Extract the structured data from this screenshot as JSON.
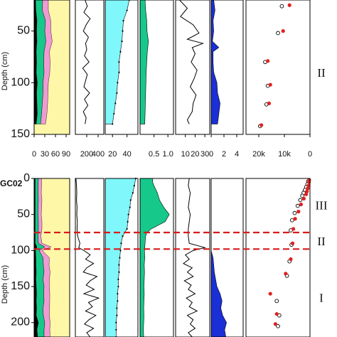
{
  "figure": {
    "core_label": "GC02",
    "depth_label": "Depth (cm)",
    "colors": {
      "yellow": "#fff7a8",
      "pink": "#ef9bd3",
      "green": "#16c98a",
      "black": "#000000",
      "cyan": "#7ff7fb",
      "blue": "#1b2fd6",
      "red": "#e0201f",
      "zone_line": "#d81b1b"
    }
  },
  "chart_data": [
    {
      "type": "area",
      "panel": "upper",
      "depth_axis": {
        "label": "Depth (cm)",
        "ticks": [
          50,
          100,
          150
        ],
        "range": [
          20,
          150
        ],
        "reversed": true
      },
      "zones": [
        {
          "label": "II",
          "depth": 90
        }
      ],
      "tracks": [
        {
          "name": "composition",
          "type": "stacked-area",
          "ticks": [
            "0",
            "30",
            "60",
            "90"
          ],
          "range": [
            0,
            100
          ],
          "depth": [
            20,
            30,
            40,
            50,
            60,
            70,
            80,
            90,
            100,
            110,
            120,
            130,
            140
          ],
          "series": [
            {
              "key": "black",
              "values": [
                4,
                5,
                8,
                7,
                8,
                6,
                7,
                6,
                9,
                7,
                8,
                9,
                6
              ]
            },
            {
              "key": "green",
              "values": [
                20,
                18,
                24,
                23,
                25,
                22,
                20,
                22,
                16,
                18,
                15,
                12,
                12
              ]
            },
            {
              "key": "pink",
              "values": [
                16,
                17,
                15,
                17,
                18,
                15,
                18,
                16,
                15,
                14,
                15,
                15,
                14
              ]
            }
          ]
        },
        {
          "name": "line-1",
          "type": "line",
          "ticks": [
            "200",
            "400"
          ],
          "range": [
            0,
            500
          ],
          "depth": [
            20,
            26,
            32,
            38,
            44,
            50,
            56,
            62,
            68,
            74,
            80,
            86,
            92,
            98,
            104,
            110,
            116,
            122,
            128,
            134,
            140
          ],
          "values": [
            170,
            210,
            150,
            260,
            190,
            140,
            230,
            180,
            200,
            160,
            240,
            130,
            210,
            180,
            150,
            250,
            160,
            220,
            140,
            190,
            170
          ]
        },
        {
          "name": "cyan-profile",
          "type": "area-dotted",
          "ticks": [
            "20",
            "40"
          ],
          "range": [
            10,
            55
          ],
          "depth": [
            20,
            30,
            40,
            50,
            60,
            70,
            80,
            90,
            100,
            110,
            120,
            130,
            140
          ],
          "values": [
            43,
            40,
            35,
            34,
            33,
            31,
            29,
            29,
            27,
            26,
            24,
            22,
            20
          ]
        },
        {
          "name": "green-profile",
          "type": "area",
          "ticks": [
            "0.5",
            "1.0"
          ],
          "range": [
            0,
            1.2
          ],
          "depth": [
            20,
            30,
            40,
            50,
            60,
            70,
            80,
            90,
            100,
            110,
            120,
            130,
            140
          ],
          "values": [
            0.18,
            0.2,
            0.24,
            0.25,
            0.3,
            0.26,
            0.24,
            0.22,
            0.21,
            0.2,
            0.19,
            0.18,
            0.17
          ]
        },
        {
          "name": "line-2",
          "type": "line",
          "ticks": [
            "10",
            "20",
            "30"
          ],
          "range": [
            0,
            35
          ],
          "depth": [
            20,
            28,
            36,
            44,
            52,
            58,
            62,
            66,
            72,
            80,
            88,
            96,
            104,
            112,
            120,
            128,
            136,
            140
          ],
          "values": [
            4,
            12,
            5,
            18,
            24,
            12,
            28,
            17,
            20,
            16,
            22,
            19,
            15,
            21,
            18,
            17,
            12,
            14
          ]
        },
        {
          "name": "blue-profile",
          "type": "area",
          "ticks": [
            "0",
            "2",
            "4"
          ],
          "range": [
            0,
            5
          ],
          "depth": [
            20,
            30,
            40,
            50,
            60,
            66,
            70,
            80,
            90,
            100,
            110,
            120,
            130,
            140
          ],
          "values": [
            0.4,
            0.6,
            0.3,
            0.4,
            0.2,
            1.2,
            0.3,
            0.3,
            0.4,
            0.9,
            1.0,
            1.4,
            1.2,
            1.0
          ]
        },
        {
          "name": "ages",
          "type": "scatter",
          "ticks": [
            "20k",
            "10k",
            "0"
          ],
          "range": [
            25000,
            0
          ],
          "series": [
            {
              "key": "open",
              "depth": [
                26,
                52,
                80,
                103,
                121,
                142
              ],
              "values": [
                11000,
                12500,
                17500,
                16500,
                17000,
                19500
              ]
            },
            {
              "key": "red",
              "depth": [
                25,
                50,
                79,
                102,
                120,
                141
              ],
              "values": [
                8000,
                10500,
                16500,
                15500,
                16000,
                19000
              ]
            }
          ]
        }
      ]
    },
    {
      "type": "area",
      "panel": "lower",
      "depth_axis": {
        "label": "Depth (cm)",
        "ticks": [
          0,
          50,
          100,
          150,
          200
        ],
        "range": [
          0,
          220
        ],
        "reversed": true
      },
      "zone_boundaries": [
        75,
        98
      ],
      "zones": [
        {
          "label": "III",
          "depth": 37
        },
        {
          "label": "II",
          "depth": 87
        },
        {
          "label": "I",
          "depth": 165
        }
      ],
      "tracks": [
        {
          "name": "composition",
          "type": "stacked-area",
          "range": [
            0,
            100
          ],
          "depth": [
            0,
            10,
            20,
            30,
            40,
            50,
            60,
            70,
            80,
            90,
            95,
            100,
            110,
            120,
            130,
            140,
            150,
            160,
            170,
            180,
            190,
            200,
            210,
            220
          ],
          "series": [
            {
              "key": "black",
              "values": [
                3,
                3,
                3,
                3,
                3,
                3,
                3,
                3,
                3,
                3,
                8,
                4,
                5,
                5,
                6,
                5,
                6,
                7,
                6,
                7,
                6,
                12,
                8,
                10
              ]
            },
            {
              "key": "green",
              "values": [
                9,
                8,
                8,
                9,
                8,
                8,
                9,
                9,
                8,
                9,
                22,
                10,
                20,
                21,
                22,
                20,
                22,
                20,
                22,
                18,
                20,
                18,
                20,
                18
              ]
            },
            {
              "key": "pink",
              "values": [
                9,
                10,
                9,
                10,
                10,
                9,
                10,
                10,
                8,
                10,
                18,
                9,
                18,
                16,
                17,
                18,
                15,
                17,
                16,
                18,
                17,
                15,
                16,
                17
              ]
            }
          ]
        },
        {
          "name": "line-1",
          "type": "line",
          "range": [
            0,
            500
          ],
          "depth": [
            0,
            10,
            20,
            30,
            40,
            50,
            60,
            70,
            80,
            90,
            96,
            100,
            106,
            112,
            118,
            124,
            130,
            136,
            142,
            148,
            154,
            160,
            166,
            172,
            178,
            184,
            190,
            196,
            202,
            208,
            214,
            220
          ],
          "values": [
            10,
            20,
            25,
            20,
            30,
            25,
            35,
            30,
            40,
            80,
            60,
            150,
            260,
            180,
            320,
            200,
            140,
            380,
            260,
            190,
            330,
            150,
            410,
            230,
            300,
            180,
            360,
            240,
            160,
            320,
            200,
            260
          ]
        },
        {
          "name": "cyan-profile",
          "type": "area-dotted",
          "range": [
            10,
            55
          ],
          "depth": [
            0,
            10,
            20,
            30,
            40,
            50,
            60,
            70,
            80,
            90,
            100,
            110,
            120,
            130,
            140,
            150,
            160,
            170,
            180,
            190,
            200,
            210,
            220
          ],
          "values": [
            52,
            50,
            48,
            45,
            44,
            42,
            41,
            40,
            34,
            32,
            31,
            30,
            29,
            29,
            28,
            28,
            27,
            27,
            26,
            26,
            25,
            25,
            25
          ]
        },
        {
          "name": "green-profile",
          "type": "area",
          "range": [
            0,
            1.2
          ],
          "depth": [
            0,
            5,
            10,
            20,
            30,
            40,
            50,
            60,
            70,
            75,
            80,
            90,
            100,
            110,
            120,
            130,
            140,
            150,
            160,
            170,
            180,
            190,
            200,
            210,
            220
          ],
          "values": [
            0.45,
            0.45,
            0.5,
            0.62,
            0.7,
            0.85,
            1.05,
            0.9,
            0.4,
            0.25,
            0.2,
            0.18,
            0.16,
            0.17,
            0.15,
            0.16,
            0.15,
            0.14,
            0.15,
            0.14,
            0.13,
            0.14,
            0.13,
            0.12,
            0.13
          ]
        },
        {
          "name": "line-2",
          "type": "line",
          "range": [
            0,
            35
          ],
          "depth": [
            0,
            10,
            20,
            30,
            40,
            50,
            60,
            70,
            80,
            90,
            96,
            100,
            106,
            112,
            118,
            124,
            130,
            136,
            142,
            148,
            154,
            160,
            166,
            172,
            178,
            184,
            190,
            196,
            202,
            208,
            214,
            220
          ],
          "values": [
            14,
            13,
            15,
            14,
            13,
            15,
            14,
            13,
            13,
            14,
            30,
            18,
            10,
            14,
            8,
            17,
            12,
            18,
            9,
            16,
            13,
            20,
            11,
            17,
            14,
            22,
            12,
            18,
            15,
            20,
            13,
            17
          ]
        },
        {
          "name": "blue-profile",
          "type": "area",
          "range": [
            0,
            5
          ],
          "depth": [
            0,
            100,
            110,
            120,
            130,
            140,
            150,
            160,
            170,
            180,
            190,
            200,
            210,
            220
          ],
          "values": [
            0,
            0,
            0.3,
            0.4,
            0.5,
            0.7,
            0.9,
            1.4,
            1.7,
            1.5,
            1.8,
            2.4,
            2.1,
            2.3
          ]
        },
        {
          "name": "ages",
          "type": "scatter",
          "range": [
            25000,
            0
          ],
          "series": [
            {
              "key": "open",
              "depth": [
                4,
                8,
                12,
                16,
                20,
                24,
                30,
                38,
                48,
                58,
                72,
                92,
                115,
                135,
                170,
                190,
                205
              ],
              "values": [
                700,
                1000,
                1500,
                2000,
                2500,
                3000,
                3800,
                4800,
                6000,
                7000,
                7500,
                7200,
                8000,
                9000,
                13000,
                12000,
                12500
              ]
            },
            {
              "key": "red",
              "depth": [
                2,
                5,
                10,
                14,
                18,
                22,
                28,
                36,
                46,
                56,
                70,
                90,
                112,
                132,
                160,
                188,
                202
              ],
              "values": [
                300,
                400,
                600,
                900,
                1200,
                1500,
                2400,
                3500,
                4500,
                5800,
                6500,
                6800,
                7500,
                9500,
                15500,
                13000,
                13500
              ]
            }
          ]
        }
      ]
    }
  ]
}
